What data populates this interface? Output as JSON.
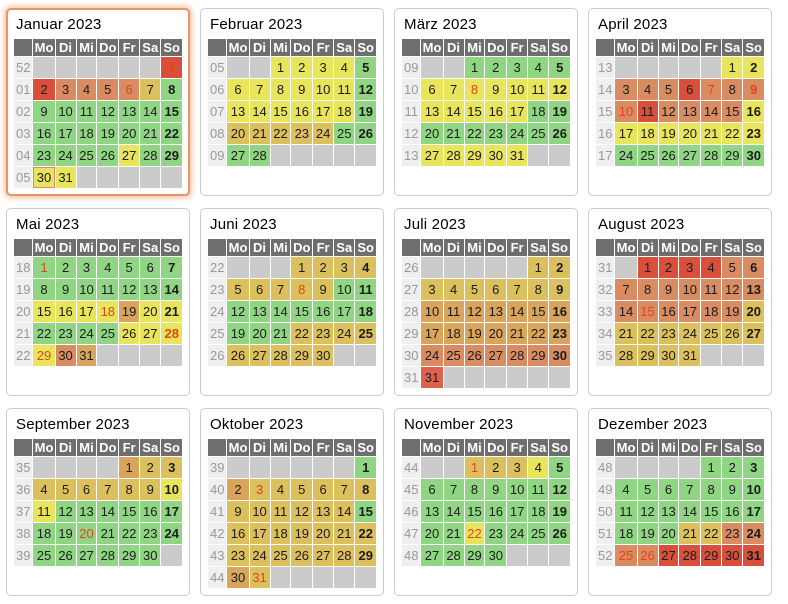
{
  "page": {
    "background": "#FFFFFF"
  },
  "weekdays": [
    "Mo",
    "Di",
    "Mi",
    "Do",
    "Fr",
    "Sa",
    "So"
  ],
  "colors": {
    "g": "#90D583",
    "y": "#E8E45C",
    "d": "#DCC05E",
    "o": "#D9A45C",
    "s": "#D98B62",
    "r": "#D8503C",
    "l": "#E0614B",
    "holiday_text": "#E2441A",
    "empty_cell": "#CBCBCB",
    "header_bg": "#6E6E6E",
    "header_text": "#FFFFFF",
    "week_bg": "#EFEFEF",
    "week_text": "#999999",
    "today_border": "#E4837B",
    "highlight_border": "#E89468"
  },
  "months": [
    {
      "id": "januar",
      "name": "Januar 2023",
      "highlight": true,
      "weeks": [
        {
          "n": "52",
          "d": [
            "",
            "",
            "",
            "",
            "",
            "",
            "1|r|h"
          ]
        },
        {
          "n": "01",
          "d": [
            "2|r",
            "3|s",
            "4|s",
            "5|s",
            "6|s|h",
            "7|d",
            "8|g"
          ]
        },
        {
          "n": "02",
          "d": [
            "9|g",
            "10|g",
            "11|g",
            "12|g",
            "13|g",
            "14|g",
            "15|g"
          ]
        },
        {
          "n": "03",
          "d": [
            "16|g",
            "17|g",
            "18|g",
            "19|g",
            "20|g",
            "21|g",
            "22|g"
          ]
        },
        {
          "n": "04",
          "d": [
            "23|g",
            "24|g",
            "25|g",
            "26|g",
            "27|y",
            "28|g",
            "29|g"
          ]
        },
        {
          "n": "05",
          "d": [
            "30|y|t",
            "31|y",
            "",
            "",
            "",
            "",
            ""
          ]
        }
      ]
    },
    {
      "id": "februar",
      "name": "Februar 2023",
      "highlight": false,
      "weeks": [
        {
          "n": "05",
          "d": [
            "",
            "",
            "1|y",
            "2|y",
            "3|y",
            "4|y",
            "5|g"
          ]
        },
        {
          "n": "06",
          "d": [
            "6|y",
            "7|y",
            "8|y",
            "9|y",
            "10|y",
            "11|y",
            "12|g"
          ]
        },
        {
          "n": "07",
          "d": [
            "13|y",
            "14|y",
            "15|y",
            "16|y",
            "17|y",
            "18|y",
            "19|g"
          ]
        },
        {
          "n": "08",
          "d": [
            "20|d",
            "21|d",
            "22|d",
            "23|d",
            "24|d",
            "25|g",
            "26|g"
          ]
        },
        {
          "n": "09",
          "d": [
            "27|g",
            "28|g",
            "",
            "",
            "",
            "",
            ""
          ]
        }
      ]
    },
    {
      "id": "maerz",
      "name": "März 2023",
      "highlight": false,
      "weeks": [
        {
          "n": "09",
          "d": [
            "",
            "",
            "1|g",
            "2|g",
            "3|g",
            "4|g",
            "5|g"
          ]
        },
        {
          "n": "10",
          "d": [
            "6|y",
            "7|y",
            "8|y|h",
            "9|y",
            "10|y",
            "11|y",
            "12|y"
          ]
        },
        {
          "n": "11",
          "d": [
            "13|y",
            "14|y",
            "15|y",
            "16|y",
            "17|y",
            "18|g",
            "19|g"
          ]
        },
        {
          "n": "12",
          "d": [
            "20|g",
            "21|g",
            "22|g",
            "23|g",
            "24|g",
            "25|g",
            "26|g"
          ]
        },
        {
          "n": "13",
          "d": [
            "27|y",
            "28|y",
            "29|y",
            "30|y",
            "31|y",
            "",
            ""
          ]
        }
      ]
    },
    {
      "id": "april",
      "name": "April 2023",
      "highlight": false,
      "weeks": [
        {
          "n": "13",
          "d": [
            "",
            "",
            "",
            "",
            "",
            "1|y",
            "2|y"
          ]
        },
        {
          "n": "14",
          "d": [
            "3|s",
            "4|s",
            "5|s",
            "6|r",
            "7|s|h",
            "8|s",
            "9|s|h"
          ]
        },
        {
          "n": "15",
          "d": [
            "10|s|h",
            "11|r",
            "12|s",
            "13|s",
            "14|s",
            "15|s",
            "16|y"
          ]
        },
        {
          "n": "16",
          "d": [
            "17|y",
            "18|y",
            "19|y",
            "20|y",
            "21|y",
            "22|y",
            "23|y"
          ]
        },
        {
          "n": "17",
          "d": [
            "24|g",
            "25|g",
            "26|g",
            "27|g",
            "28|g",
            "29|g",
            "30|g"
          ]
        }
      ]
    },
    {
      "id": "mai",
      "name": "Mai 2023",
      "highlight": false,
      "weeks": [
        {
          "n": "18",
          "d": [
            "1|g|h",
            "2|g",
            "3|g",
            "4|g",
            "5|g",
            "6|g",
            "7|g"
          ]
        },
        {
          "n": "19",
          "d": [
            "8|g",
            "9|g",
            "10|g",
            "11|g",
            "12|g",
            "13|g",
            "14|g"
          ]
        },
        {
          "n": "20",
          "d": [
            "15|y",
            "16|y",
            "17|y",
            "18|y|h",
            "19|o",
            "20|y",
            "21|y"
          ]
        },
        {
          "n": "21",
          "d": [
            "22|g",
            "23|g",
            "24|g",
            "25|g",
            "26|y",
            "27|y",
            "28|y|h"
          ]
        },
        {
          "n": "22",
          "d": [
            "29|y|h",
            "30|s",
            "31|o",
            "",
            "",
            "",
            ""
          ]
        }
      ]
    },
    {
      "id": "juni",
      "name": "Juni 2023",
      "highlight": false,
      "weeks": [
        {
          "n": "22",
          "d": [
            "",
            "",
            "",
            "1|d",
            "2|d",
            "3|d",
            "4|d"
          ]
        },
        {
          "n": "23",
          "d": [
            "5|d",
            "6|d",
            "7|d",
            "8|d|h",
            "9|d",
            "10|g",
            "11|g"
          ]
        },
        {
          "n": "24",
          "d": [
            "12|g",
            "13|g",
            "14|g",
            "15|g",
            "16|g",
            "17|g",
            "18|g"
          ]
        },
        {
          "n": "25",
          "d": [
            "19|g",
            "20|g",
            "21|g",
            "22|d",
            "23|d",
            "24|d",
            "25|d"
          ]
        },
        {
          "n": "26",
          "d": [
            "26|d",
            "27|d",
            "28|d",
            "29|d",
            "30|d",
            "",
            ""
          ]
        }
      ]
    },
    {
      "id": "juli",
      "name": "Juli 2023",
      "highlight": false,
      "weeks": [
        {
          "n": "26",
          "d": [
            "",
            "",
            "",
            "",
            "",
            "1|d",
            "2|d"
          ]
        },
        {
          "n": "27",
          "d": [
            "3|d",
            "4|d",
            "5|d",
            "6|d",
            "7|d",
            "8|d",
            "9|d"
          ]
        },
        {
          "n": "28",
          "d": [
            "10|o",
            "11|o",
            "12|o",
            "13|o",
            "14|o",
            "15|o",
            "16|o"
          ]
        },
        {
          "n": "29",
          "d": [
            "17|o",
            "18|o",
            "19|o",
            "20|o",
            "21|o",
            "22|o",
            "23|o"
          ]
        },
        {
          "n": "30",
          "d": [
            "24|s",
            "25|s",
            "26|s",
            "27|s",
            "28|s",
            "29|s",
            "30|s"
          ]
        },
        {
          "n": "31",
          "d": [
            "31|l",
            "",
            "",
            "",
            "",
            "",
            ""
          ]
        }
      ]
    },
    {
      "id": "august",
      "name": "August 2023",
      "highlight": false,
      "weeks": [
        {
          "n": "31",
          "d": [
            "",
            "1|r",
            "2|r",
            "3|r",
            "4|r",
            "5|s",
            "6|s"
          ]
        },
        {
          "n": "32",
          "d": [
            "7|s",
            "8|s",
            "9|s",
            "10|s",
            "11|s",
            "12|s",
            "13|s"
          ]
        },
        {
          "n": "33",
          "d": [
            "14|s",
            "15|s|h",
            "16|s",
            "17|s",
            "18|s",
            "19|s",
            "20|d"
          ]
        },
        {
          "n": "34",
          "d": [
            "21|d",
            "22|d",
            "23|d",
            "24|d",
            "25|d",
            "26|d",
            "27|d"
          ]
        },
        {
          "n": "35",
          "d": [
            "28|d",
            "29|d",
            "30|d",
            "31|d",
            "",
            "",
            ""
          ]
        }
      ]
    },
    {
      "id": "september",
      "name": "September 2023",
      "highlight": false,
      "weeks": [
        {
          "n": "35",
          "d": [
            "",
            "",
            "",
            "",
            "1|o",
            "2|d",
            "3|d"
          ]
        },
        {
          "n": "36",
          "d": [
            "4|d",
            "5|d",
            "6|d",
            "7|d",
            "8|d",
            "9|d",
            "10|y"
          ]
        },
        {
          "n": "37",
          "d": [
            "11|y",
            "12|g",
            "13|g",
            "14|g",
            "15|g",
            "16|g",
            "17|g"
          ]
        },
        {
          "n": "38",
          "d": [
            "18|g",
            "19|g",
            "20|g|h",
            "21|g",
            "22|g",
            "23|g",
            "24|g"
          ]
        },
        {
          "n": "39",
          "d": [
            "25|g",
            "26|g",
            "27|g",
            "28|g",
            "29|g",
            "30|g",
            ""
          ]
        }
      ]
    },
    {
      "id": "oktober",
      "name": "Oktober 2023",
      "highlight": false,
      "weeks": [
        {
          "n": "39",
          "d": [
            "",
            "",
            "",
            "",
            "",
            "",
            "1|g"
          ]
        },
        {
          "n": "40",
          "d": [
            "2|o",
            "3|d|h",
            "4|d",
            "5|d",
            "6|d",
            "7|d",
            "8|d"
          ]
        },
        {
          "n": "41",
          "d": [
            "9|d",
            "10|d",
            "11|d",
            "12|d",
            "13|d",
            "14|d",
            "15|g"
          ]
        },
        {
          "n": "42",
          "d": [
            "16|d",
            "17|d",
            "18|d",
            "19|d",
            "20|d",
            "21|d",
            "22|d"
          ]
        },
        {
          "n": "43",
          "d": [
            "23|d",
            "24|d",
            "25|d",
            "26|d",
            "27|d",
            "28|d",
            "29|d"
          ]
        },
        {
          "n": "44",
          "d": [
            "30|o",
            "31|d|h",
            "",
            "",
            "",
            "",
            ""
          ]
        }
      ]
    },
    {
      "id": "november",
      "name": "November 2023",
      "highlight": false,
      "weeks": [
        {
          "n": "44",
          "d": [
            "",
            "",
            "1|d|h",
            "2|d",
            "3|d",
            "4|y",
            "5|g"
          ]
        },
        {
          "n": "45",
          "d": [
            "6|g",
            "7|g",
            "8|g",
            "9|g",
            "10|g",
            "11|g",
            "12|g"
          ]
        },
        {
          "n": "46",
          "d": [
            "13|g",
            "14|g",
            "15|g",
            "16|g",
            "17|g",
            "18|g",
            "19|g"
          ]
        },
        {
          "n": "47",
          "d": [
            "20|g",
            "21|g",
            "22|y|h",
            "23|g",
            "24|g",
            "25|g",
            "26|g"
          ]
        },
        {
          "n": "48",
          "d": [
            "27|g",
            "28|g",
            "29|g",
            "30|g",
            "",
            "",
            ""
          ]
        }
      ]
    },
    {
      "id": "dezember",
      "name": "Dezember 2023",
      "highlight": false,
      "weeks": [
        {
          "n": "48",
          "d": [
            "",
            "",
            "",
            "",
            "1|g",
            "2|g",
            "3|g"
          ]
        },
        {
          "n": "49",
          "d": [
            "4|g",
            "5|g",
            "6|g",
            "7|g",
            "8|g",
            "9|g",
            "10|g"
          ]
        },
        {
          "n": "50",
          "d": [
            "11|g",
            "12|g",
            "13|g",
            "14|g",
            "15|g",
            "16|g",
            "17|g"
          ]
        },
        {
          "n": "51",
          "d": [
            "18|g",
            "19|g",
            "20|g",
            "21|d",
            "22|d",
            "23|s",
            "24|s"
          ]
        },
        {
          "n": "52",
          "d": [
            "25|s|h",
            "26|s|h",
            "27|r",
            "28|r",
            "29|r",
            "30|r",
            "31|r"
          ]
        }
      ]
    }
  ]
}
